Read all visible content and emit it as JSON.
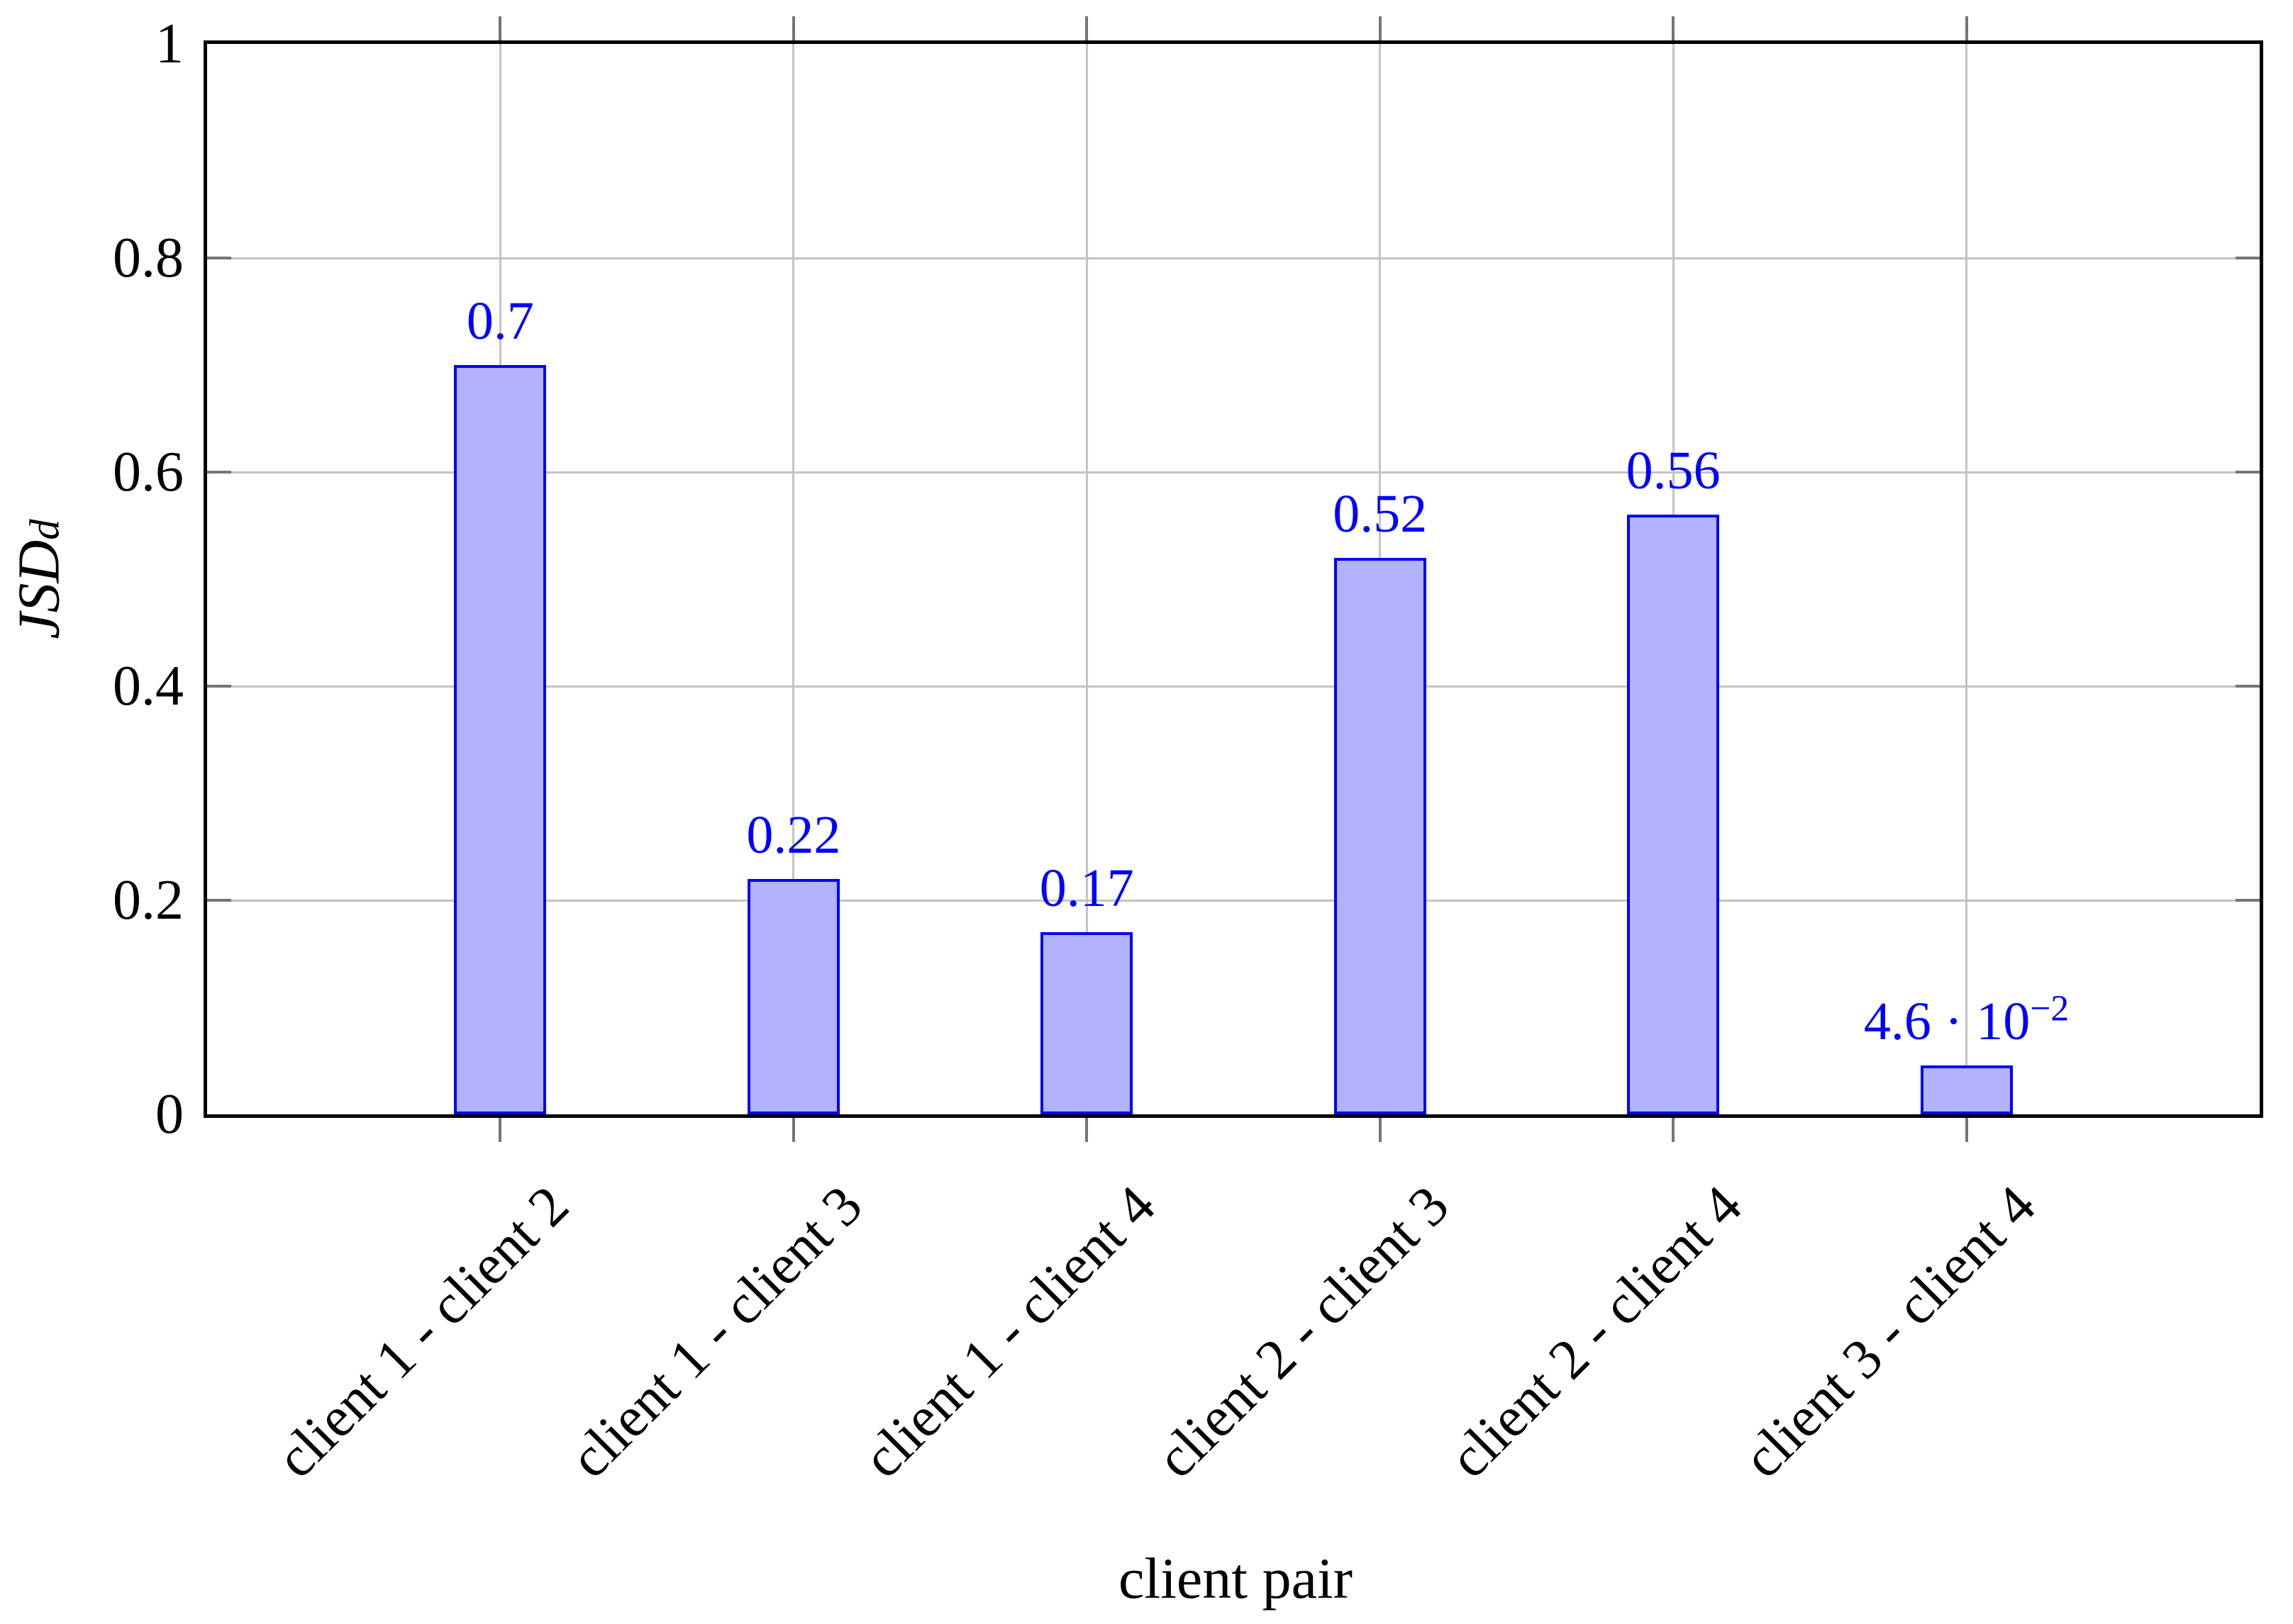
{
  "figure": {
    "xlabel": "client pair",
    "ylabel_main": "JSD",
    "ylabel_sub": "d"
  },
  "chart_data": {
    "type": "bar",
    "title": "",
    "xlabel": "client pair",
    "ylabel": "JSD_d",
    "categories": [
      "client 1 - client 2",
      "client 1 - client 3",
      "client 1 - client 4",
      "client 2 - client 3",
      "client 2 - client 4",
      "client 3 - client 4"
    ],
    "values": [
      0.7,
      0.22,
      0.17,
      0.52,
      0.56,
      0.046
    ],
    "bar_labels": [
      {
        "main": "0.7",
        "sup": ""
      },
      {
        "main": "0.22",
        "sup": ""
      },
      {
        "main": "0.17",
        "sup": ""
      },
      {
        "main": "0.52",
        "sup": ""
      },
      {
        "main": "0.56",
        "sup": ""
      },
      {
        "main": "4.6 · 10",
        "sup": "−2"
      }
    ],
    "ylim": [
      0,
      1
    ],
    "yticks": [
      0,
      0.2,
      0.4,
      0.6,
      0.8,
      1
    ],
    "ytick_labels": [
      "0",
      "0.2",
      "0.4",
      "0.6",
      "0.8",
      "1"
    ],
    "grid": true,
    "legend": "none",
    "colors": {
      "bar_fill": "#b2b2ff",
      "bar_border": "#0000ff",
      "value_label": "#0000ff",
      "grid": "#c4c4c4",
      "tick": "#757575",
      "axis": "#000000",
      "text": "#000000"
    }
  }
}
